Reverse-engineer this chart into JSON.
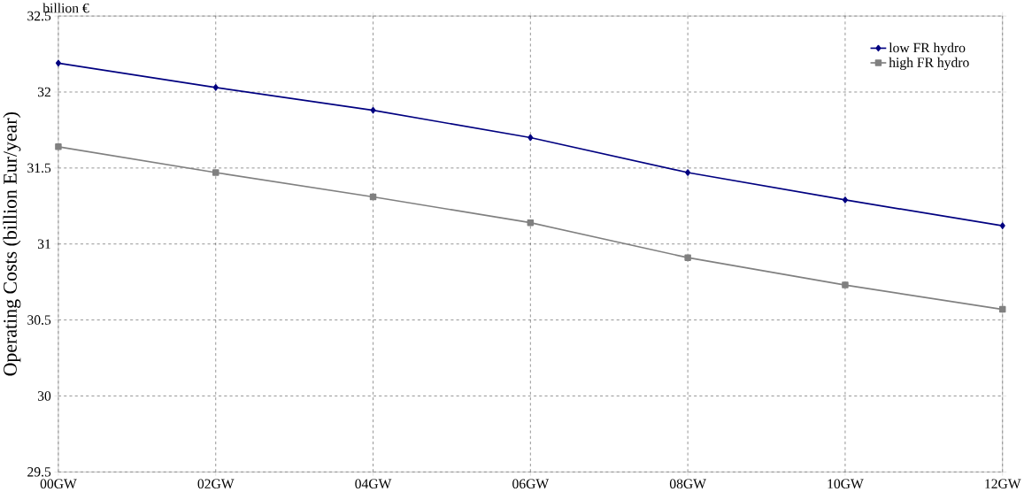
{
  "chart_data": {
    "type": "line",
    "ylabel": "Operating Costs (billion Eur/year)",
    "annotations": [
      "billion €"
    ],
    "categories": [
      "00GW",
      "02GW",
      "04GW",
      "06GW",
      "08GW",
      "10GW",
      "12GW"
    ],
    "series": [
      {
        "name": "low FR hydro",
        "color": "#000080",
        "marker": "diamond",
        "values": [
          32.19,
          32.03,
          31.88,
          31.7,
          31.47,
          31.29,
          31.12
        ]
      },
      {
        "name": "high FR hydro",
        "color": "#808080",
        "marker": "square",
        "values": [
          31.64,
          31.47,
          31.31,
          31.14,
          30.91,
          30.73,
          30.57
        ]
      }
    ],
    "ylim": [
      29.5,
      32.5
    ],
    "yticks": [
      29.5,
      30,
      30.5,
      31,
      31.5,
      32,
      32.5
    ],
    "grid": true,
    "legend": "top right",
    "line_style": "solid"
  }
}
